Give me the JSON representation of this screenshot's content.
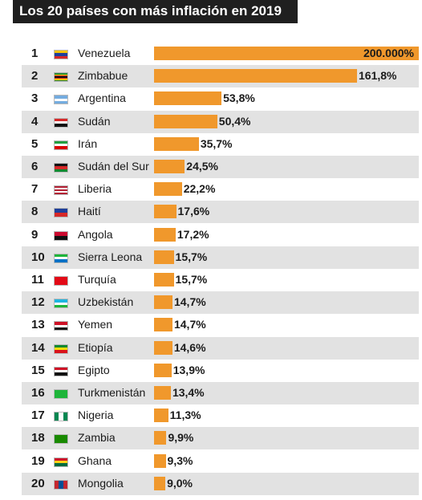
{
  "colors": {
    "bar": "#f0982c",
    "title_background": "#1f1f1f",
    "row_shade": "#e2e2e2"
  },
  "chart_data": {
    "type": "bar",
    "orientation": "horizontal",
    "title": "Los 20 países con más inflación en 2019",
    "xlabel": "",
    "ylabel": "",
    "categories": [
      "Venezuela",
      "Zimbabue",
      "Argentina",
      "Sudán",
      "Irán",
      "Sudán del Sur",
      "Liberia",
      "Haití",
      "Angola",
      "Sierra Leona",
      "Turquía",
      "Uzbekistán",
      "Yemen",
      "Etiopía",
      "Egipto",
      "Turkmenistán",
      "Nigeria",
      "Zambia",
      "Ghana",
      "Mongolia"
    ],
    "ranks": [
      "1",
      "2",
      "3",
      "4",
      "5",
      "6",
      "7",
      "8",
      "9",
      "10",
      "11",
      "12",
      "13",
      "14",
      "15",
      "16",
      "17",
      "18",
      "19",
      "20"
    ],
    "values": [
      200000,
      161.8,
      53.8,
      50.4,
      35.7,
      24.5,
      22.2,
      17.6,
      17.2,
      15.7,
      15.7,
      14.7,
      14.7,
      14.6,
      13.9,
      13.4,
      11.3,
      9.9,
      9.3,
      9.0
    ],
    "value_labels": [
      "200.000%",
      "161,8%",
      "53,8%",
      "50,4%",
      "35,7%",
      "24,5%",
      "22,2%",
      "17,6%",
      "17,2%",
      "15,7%",
      "15,7%",
      "14,7%",
      "14,7%",
      "14,6%",
      "13,9%",
      "13,4%",
      "11,3%",
      "9,9%",
      "9,3%",
      "9,0%"
    ],
    "flags": [
      "venezuela-flag",
      "zimbabwe-flag",
      "argentina-flag",
      "sudan-flag",
      "iran-flag",
      "south-sudan-flag",
      "liberia-flag",
      "haiti-flag",
      "angola-flag",
      "sierra-leone-flag",
      "turkey-flag",
      "uzbekistan-flag",
      "yemen-flag",
      "ethiopia-flag",
      "egypt-flag",
      "turkmenistan-flag",
      "nigeria-flag",
      "zambia-flag",
      "ghana-flag",
      "mongolia-flag"
    ],
    "flag_colors": [
      [
        "#f4c400",
        "#1f3f9a",
        "#d62828"
      ],
      [
        "#2e8b3a",
        "#f4c400",
        "#d62828",
        "#111111",
        "#d62828",
        "#f4c400",
        "#2e8b3a"
      ],
      [
        "#74acdf",
        "#ffffff",
        "#74acdf"
      ],
      [
        "#d62828",
        "#ffffff",
        "#111111"
      ],
      [
        "#239f40",
        "#ffffff",
        "#da0000"
      ],
      [
        "#111111",
        "#d62828",
        "#078930"
      ],
      [
        "#b22234",
        "#ffffff",
        "#b22234",
        "#ffffff",
        "#b22234"
      ],
      [
        "#1f3f9a",
        "#d62828"
      ],
      [
        "#cc092f",
        "#111111"
      ],
      [
        "#1eb53a",
        "#ffffff",
        "#0072c6"
      ],
      [
        "#e30a17",
        "#e30a17"
      ],
      [
        "#1eb5e0",
        "#ffffff",
        "#1eb53a"
      ],
      [
        "#ce1126",
        "#ffffff",
        "#111111"
      ],
      [
        "#078930",
        "#fcdd09",
        "#da121a"
      ],
      [
        "#ce1126",
        "#ffffff",
        "#111111"
      ],
      [
        "#1eb53a",
        "#1eb53a"
      ],
      [
        "#008751",
        "#ffffff",
        "#008751"
      ],
      [
        "#198a00",
        "#198a00"
      ],
      [
        "#ce1126",
        "#fcd116",
        "#006b3f"
      ],
      [
        "#c4272f",
        "#015197",
        "#c4272f"
      ]
    ],
    "flag_orientation": [
      "h",
      "h",
      "h",
      "h",
      "h",
      "h",
      "h",
      "h",
      "h",
      "h",
      "h",
      "h",
      "h",
      "h",
      "h",
      "h",
      "v",
      "h",
      "h",
      "v"
    ],
    "bar_display_order": "value rank; first bar spans full width (axis broken)",
    "legend": "none",
    "grid": false
  }
}
